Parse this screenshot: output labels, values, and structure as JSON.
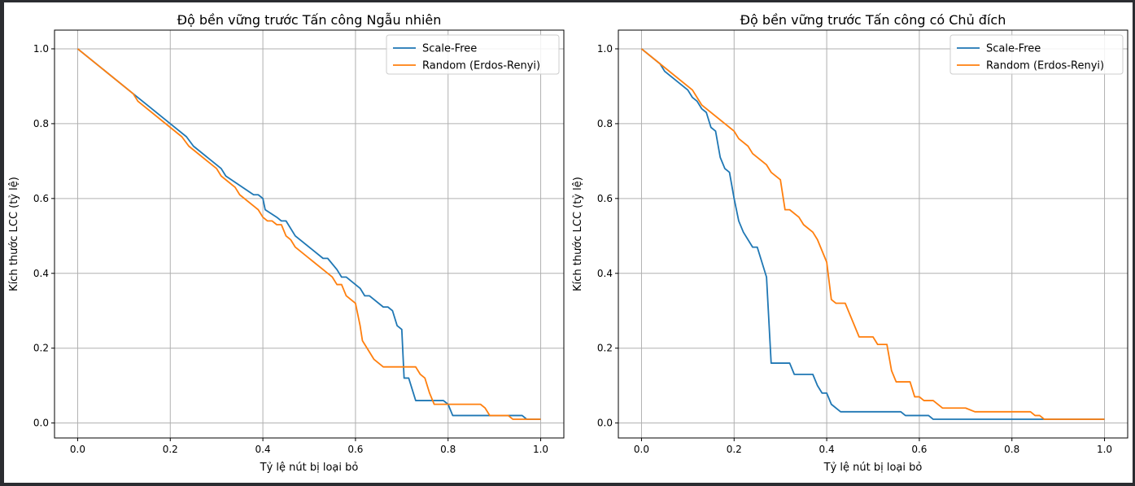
{
  "chart_data": [
    {
      "type": "line",
      "title": "Độ bền vững trước Tấn công Ngẫu nhiên",
      "xlabel": "Tỷ lệ nút bị loại bỏ",
      "ylabel": "Kích thước LCC (tỷ lệ)",
      "xlim": [
        -0.05,
        1.05
      ],
      "ylim": [
        -0.04,
        1.05
      ],
      "xticks": [
        "0.0",
        "0.2",
        "0.4",
        "0.6",
        "0.8",
        "1.0"
      ],
      "yticks": [
        "0.0",
        "0.2",
        "0.4",
        "0.6",
        "0.8",
        "1.0"
      ],
      "grid": true,
      "legend": "top-right",
      "series": [
        {
          "name": "Scale-Free",
          "color": "#1f77b4",
          "points": [
            [
              0,
              1.0
            ],
            [
              0.12,
              0.88
            ],
            [
              0.2,
              0.8
            ],
            [
              0.235,
              0.765
            ],
            [
              0.25,
              0.74
            ],
            [
              0.31,
              0.68
            ],
            [
              0.32,
              0.66
            ],
            [
              0.38,
              0.61
            ],
            [
              0.39,
              0.61
            ],
            [
              0.4,
              0.6
            ],
            [
              0.405,
              0.57
            ],
            [
              0.43,
              0.55
            ],
            [
              0.44,
              0.54
            ],
            [
              0.45,
              0.54
            ],
            [
              0.47,
              0.5
            ],
            [
              0.53,
              0.44
            ],
            [
              0.54,
              0.44
            ],
            [
              0.56,
              0.41
            ],
            [
              0.57,
              0.39
            ],
            [
              0.58,
              0.39
            ],
            [
              0.6,
              0.37
            ],
            [
              0.61,
              0.36
            ],
            [
              0.62,
              0.34
            ],
            [
              0.63,
              0.34
            ],
            [
              0.66,
              0.31
            ],
            [
              0.67,
              0.31
            ],
            [
              0.68,
              0.3
            ],
            [
              0.69,
              0.26
            ],
            [
              0.7,
              0.25
            ],
            [
              0.705,
              0.12
            ],
            [
              0.715,
              0.12
            ],
            [
              0.73,
              0.06
            ],
            [
              0.79,
              0.06
            ],
            [
              0.8,
              0.05
            ],
            [
              0.81,
              0.02
            ],
            [
              0.96,
              0.02
            ],
            [
              0.97,
              0.01
            ],
            [
              1.0,
              0.01
            ]
          ]
        },
        {
          "name": "Random (Erdos-Renyi)",
          "color": "#ff7f0e",
          "points": [
            [
              0,
              1.0
            ],
            [
              0.12,
              0.88
            ],
            [
              0.13,
              0.86
            ],
            [
              0.2,
              0.79
            ],
            [
              0.225,
              0.765
            ],
            [
              0.24,
              0.74
            ],
            [
              0.3,
              0.68
            ],
            [
              0.31,
              0.66
            ],
            [
              0.34,
              0.63
            ],
            [
              0.35,
              0.61
            ],
            [
              0.39,
              0.57
            ],
            [
              0.4,
              0.55
            ],
            [
              0.41,
              0.54
            ],
            [
              0.42,
              0.54
            ],
            [
              0.43,
              0.53
            ],
            [
              0.44,
              0.53
            ],
            [
              0.45,
              0.5
            ],
            [
              0.46,
              0.49
            ],
            [
              0.47,
              0.47
            ],
            [
              0.55,
              0.39
            ],
            [
              0.56,
              0.37
            ],
            [
              0.57,
              0.37
            ],
            [
              0.58,
              0.34
            ],
            [
              0.6,
              0.32
            ],
            [
              0.61,
              0.26
            ],
            [
              0.615,
              0.22
            ],
            [
              0.63,
              0.19
            ],
            [
              0.64,
              0.17
            ],
            [
              0.66,
              0.15
            ],
            [
              0.73,
              0.15
            ],
            [
              0.74,
              0.13
            ],
            [
              0.75,
              0.12
            ],
            [
              0.76,
              0.08
            ],
            [
              0.77,
              0.05
            ],
            [
              0.87,
              0.05
            ],
            [
              0.88,
              0.04
            ],
            [
              0.89,
              0.02
            ],
            [
              0.93,
              0.02
            ],
            [
              0.94,
              0.01
            ],
            [
              1.0,
              0.01
            ]
          ]
        }
      ]
    },
    {
      "type": "line",
      "title": "Độ bền vững trước Tấn công có Chủ đích",
      "xlabel": "Tỷ lệ nút bị loại bỏ",
      "ylabel": "Kích thước LCC (tỷ lệ)",
      "xlim": [
        -0.05,
        1.05
      ],
      "ylim": [
        -0.04,
        1.05
      ],
      "xticks": [
        "0.0",
        "0.2",
        "0.4",
        "0.6",
        "0.8",
        "1.0"
      ],
      "yticks": [
        "0.0",
        "0.2",
        "0.4",
        "0.6",
        "0.8",
        "1.0"
      ],
      "grid": true,
      "legend": "top-right",
      "series": [
        {
          "name": "Scale-Free",
          "color": "#1f77b4",
          "points": [
            [
              0,
              1.0
            ],
            [
              0.04,
              0.96
            ],
            [
              0.05,
              0.94
            ],
            [
              0.1,
              0.89
            ],
            [
              0.11,
              0.87
            ],
            [
              0.12,
              0.86
            ],
            [
              0.13,
              0.84
            ],
            [
              0.14,
              0.83
            ],
            [
              0.15,
              0.79
            ],
            [
              0.16,
              0.78
            ],
            [
              0.17,
              0.71
            ],
            [
              0.18,
              0.68
            ],
            [
              0.19,
              0.67
            ],
            [
              0.2,
              0.6
            ],
            [
              0.21,
              0.54
            ],
            [
              0.22,
              0.51
            ],
            [
              0.24,
              0.47
            ],
            [
              0.25,
              0.47
            ],
            [
              0.27,
              0.39
            ],
            [
              0.28,
              0.16
            ],
            [
              0.32,
              0.16
            ],
            [
              0.33,
              0.13
            ],
            [
              0.37,
              0.13
            ],
            [
              0.38,
              0.1
            ],
            [
              0.39,
              0.08
            ],
            [
              0.4,
              0.08
            ],
            [
              0.41,
              0.05
            ],
            [
              0.43,
              0.03
            ],
            [
              0.56,
              0.03
            ],
            [
              0.57,
              0.02
            ],
            [
              0.62,
              0.02
            ],
            [
              0.63,
              0.01
            ],
            [
              0.86,
              0.01
            ],
            [
              1.0,
              0.01
            ]
          ]
        },
        {
          "name": "Random (Erdos-Renyi)",
          "color": "#ff7f0e",
          "points": [
            [
              0,
              1.0
            ],
            [
              0.04,
              0.96
            ],
            [
              0.11,
              0.89
            ],
            [
              0.12,
              0.87
            ],
            [
              0.13,
              0.85
            ],
            [
              0.19,
              0.79
            ],
            [
              0.2,
              0.78
            ],
            [
              0.21,
              0.76
            ],
            [
              0.23,
              0.74
            ],
            [
              0.24,
              0.72
            ],
            [
              0.27,
              0.69
            ],
            [
              0.28,
              0.67
            ],
            [
              0.3,
              0.65
            ],
            [
              0.31,
              0.57
            ],
            [
              0.32,
              0.57
            ],
            [
              0.34,
              0.55
            ],
            [
              0.35,
              0.53
            ],
            [
              0.37,
              0.51
            ],
            [
              0.38,
              0.49
            ],
            [
              0.4,
              0.43
            ],
            [
              0.41,
              0.33
            ],
            [
              0.42,
              0.32
            ],
            [
              0.44,
              0.32
            ],
            [
              0.47,
              0.23
            ],
            [
              0.5,
              0.23
            ],
            [
              0.51,
              0.21
            ],
            [
              0.53,
              0.21
            ],
            [
              0.54,
              0.14
            ],
            [
              0.55,
              0.11
            ],
            [
              0.58,
              0.11
            ],
            [
              0.59,
              0.07
            ],
            [
              0.6,
              0.07
            ],
            [
              0.61,
              0.06
            ],
            [
              0.63,
              0.06
            ],
            [
              0.65,
              0.04
            ],
            [
              0.7,
              0.04
            ],
            [
              0.72,
              0.03
            ],
            [
              0.84,
              0.03
            ],
            [
              0.85,
              0.02
            ],
            [
              0.86,
              0.02
            ],
            [
              0.87,
              0.01
            ],
            [
              1.0,
              0.01
            ]
          ]
        }
      ]
    }
  ]
}
